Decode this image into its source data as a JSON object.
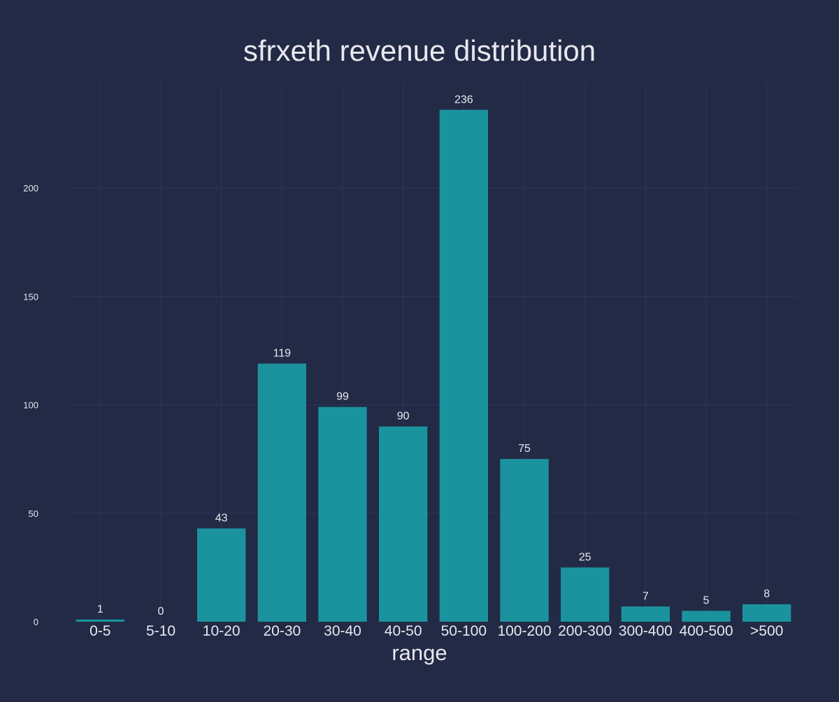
{
  "colors": {
    "background": "#222a46",
    "bar": "#1b939e",
    "grid": "#2d3655",
    "text": "#e8e8ee"
  },
  "chart_data": {
    "type": "bar",
    "title": "sfrxeth revenue distribution",
    "xlabel": "range",
    "ylabel": "",
    "categories": [
      "0-5",
      "5-10",
      "10-20",
      "20-30",
      "30-40",
      "40-50",
      "50-100",
      "100-200",
      "200-300",
      "300-400",
      "400-500",
      ">500"
    ],
    "values": [
      1,
      0,
      43,
      119,
      99,
      90,
      236,
      75,
      25,
      7,
      5,
      8
    ],
    "data_labels": [
      "1",
      "0",
      "43",
      "119",
      "99",
      "90",
      "236",
      "75",
      "25",
      "7",
      "5",
      "8"
    ],
    "ylim": [
      0,
      248
    ],
    "yticks": [
      0,
      50,
      100,
      150,
      200
    ],
    "grid": true,
    "legend": "none"
  }
}
